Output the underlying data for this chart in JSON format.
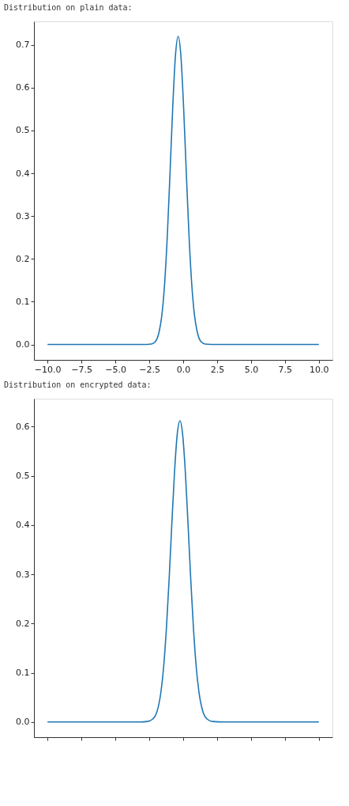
{
  "chart_data": [
    {
      "type": "line",
      "title": "Distribution on plain data:",
      "x": [
        -10,
        -3,
        -2.37,
        -2.07,
        -1.77,
        -1.57,
        -1.37,
        -1.17,
        -0.97,
        -0.77,
        -0.57,
        -0.37,
        -0.17,
        0.03,
        0.23,
        0.43,
        0.63,
        0.83,
        1.03,
        1.33,
        1.63,
        2.5,
        10
      ],
      "series": [
        {
          "color": "#1f77b4",
          "values": [
            0,
            0,
            0.001,
            0.006,
            0.03,
            0.069,
            0.141,
            0.254,
            0.401,
            0.555,
            0.675,
            0.72,
            0.675,
            0.555,
            0.401,
            0.254,
            0.141,
            0.069,
            0.03,
            0.006,
            0.001,
            0,
            0
          ]
        }
      ],
      "xlim": [
        -11,
        11
      ],
      "ylim": [
        -0.036,
        0.755
      ],
      "xticks": [
        {
          "value": -10,
          "label": "−10.0"
        },
        {
          "value": -7.5,
          "label": "−7.5"
        },
        {
          "value": -5,
          "label": "−5.0"
        },
        {
          "value": -2.5,
          "label": "−2.5"
        },
        {
          "value": 0,
          "label": "0.0"
        },
        {
          "value": 2.5,
          "label": "2.5"
        },
        {
          "value": 5,
          "label": "5.0"
        },
        {
          "value": 7.5,
          "label": "7.5"
        },
        {
          "value": 10,
          "label": "10.0"
        }
      ],
      "yticks": [
        {
          "value": 0,
          "label": "0.0"
        },
        {
          "value": 0.1,
          "label": "0.1"
        },
        {
          "value": 0.2,
          "label": "0.2"
        },
        {
          "value": 0.3,
          "label": "0.3"
        },
        {
          "value": 0.4,
          "label": "0.4"
        },
        {
          "value": 0.5,
          "label": "0.5"
        },
        {
          "value": 0.6,
          "label": "0.6"
        },
        {
          "value": 0.7,
          "label": "0.7"
        }
      ],
      "grid": false,
      "marker": "none",
      "line_style": "solid"
    },
    {
      "type": "line",
      "title": "Distribution on encrypted data:",
      "x": [
        -10,
        -3.2,
        -2.64,
        -2.24,
        -1.94,
        -1.64,
        -1.44,
        -1.24,
        -1.04,
        -0.84,
        -0.64,
        -0.44,
        -0.24,
        -0.04,
        0.16,
        0.36,
        0.56,
        0.76,
        0.96,
        1.16,
        1.46,
        1.76,
        2.16,
        3,
        10
      ],
      "series": [
        {
          "color": "#1f77b4",
          "values": [
            0,
            0,
            0.001,
            0.006,
            0.02,
            0.061,
            0.112,
            0.189,
            0.288,
            0.401,
            0.507,
            0.584,
            0.612,
            0.584,
            0.507,
            0.401,
            0.288,
            0.189,
            0.112,
            0.061,
            0.02,
            0.006,
            0.001,
            0,
            0
          ]
        }
      ],
      "xlim": [
        -11,
        11
      ],
      "ylim": [
        -0.031,
        0.657
      ],
      "xticks": [
        {
          "value": -10,
          "label": null
        },
        {
          "value": -7.5,
          "label": null
        },
        {
          "value": -5,
          "label": null
        },
        {
          "value": -2.5,
          "label": null
        },
        {
          "value": 0,
          "label": null
        },
        {
          "value": 2.5,
          "label": null
        },
        {
          "value": 5,
          "label": null
        },
        {
          "value": 7.5,
          "label": null
        },
        {
          "value": 10,
          "label": null
        }
      ],
      "yticks": [
        {
          "value": 0,
          "label": "0.0"
        },
        {
          "value": 0.1,
          "label": "0.1"
        },
        {
          "value": 0.2,
          "label": "0.2"
        },
        {
          "value": 0.3,
          "label": "0.3"
        },
        {
          "value": 0.4,
          "label": "0.4"
        },
        {
          "value": 0.5,
          "label": "0.5"
        },
        {
          "value": 0.6,
          "label": "0.6"
        }
      ],
      "tick_labels": "y",
      "grid": false,
      "marker": "none",
      "line_style": "solid"
    }
  ]
}
